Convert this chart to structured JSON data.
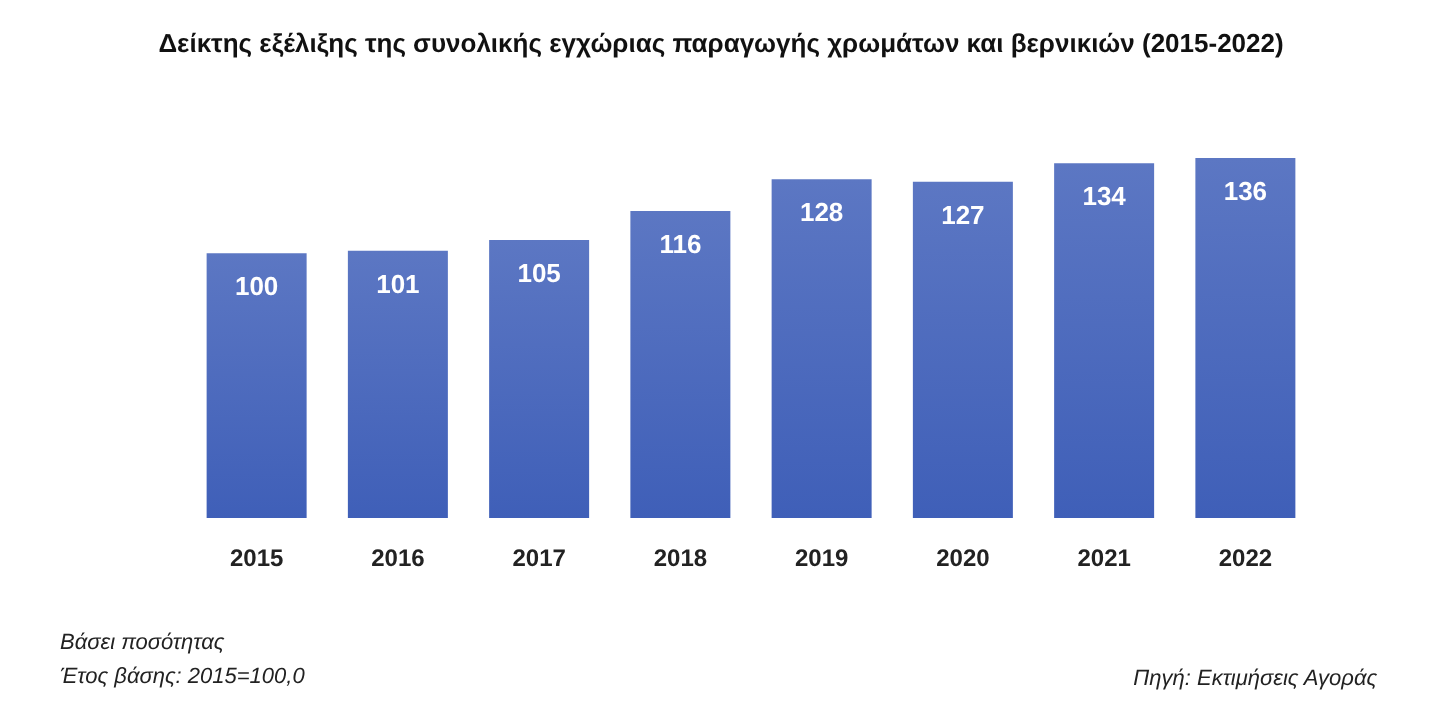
{
  "chart_data": {
    "type": "bar",
    "title": "Δείκτης εξέλιξης της συνολικής εγχώριας παραγωγής χρωμάτων και βερνικιών (2015-2022)",
    "categories": [
      "2015",
      "2016",
      "2017",
      "2018",
      "2019",
      "2020",
      "2021",
      "2022"
    ],
    "values": [
      100,
      101,
      105,
      116,
      128,
      127,
      134,
      136
    ],
    "color": "#3f5fb8",
    "data_labels": true,
    "annotations": [
      "Βάσει ποσότητας",
      "Έτος βάσης: 2015=100,0",
      "Πηγή: Εκτιμήσεις Αγοράς"
    ]
  }
}
